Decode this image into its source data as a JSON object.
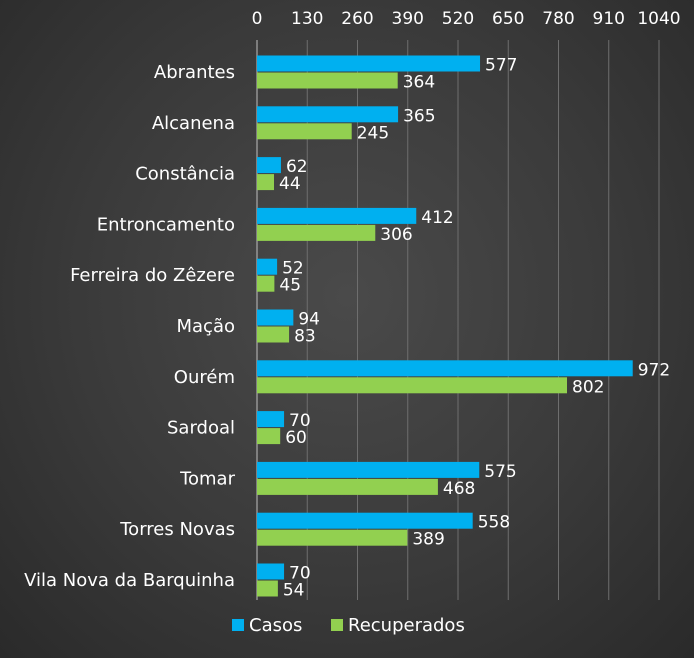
{
  "chart_data": {
    "type": "bar",
    "orientation": "horizontal",
    "categories": [
      "Abrantes",
      "Alcanena",
      "Constância",
      "Entroncamento",
      "Ferreira do Zêzere",
      "Mação",
      "Ourém",
      "Sardoal",
      "Tomar",
      "Torres Novas",
      "Vila Nova da Barquinha"
    ],
    "series": [
      {
        "name": "Casos",
        "color": "#00b0f0",
        "values": [
          577,
          365,
          62,
          412,
          52,
          94,
          972,
          70,
          575,
          558,
          70
        ]
      },
      {
        "name": "Recuperados",
        "color": "#92d050",
        "values": [
          364,
          245,
          44,
          306,
          45,
          83,
          802,
          60,
          468,
          389,
          54
        ]
      }
    ],
    "xlim": [
      0,
      1040
    ],
    "xticks": [
      0,
      130,
      260,
      390,
      520,
      650,
      780,
      910,
      1040
    ],
    "x_axis_position": "top",
    "grid": true,
    "legend": "bottom",
    "data_labels": true
  }
}
